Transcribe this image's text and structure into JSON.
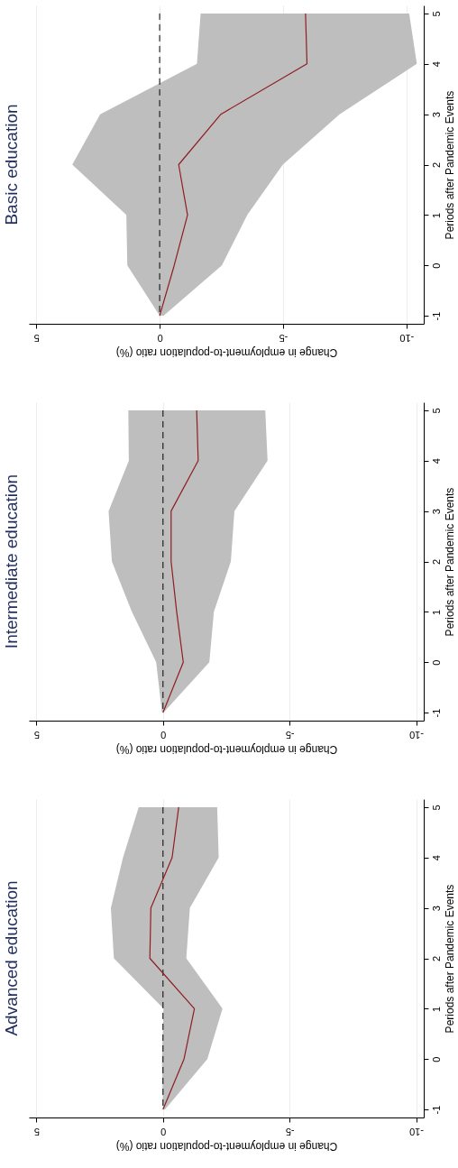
{
  "chart_data": [
    {
      "type": "line",
      "orientation": "horizontal",
      "title": "Advanced education",
      "xlabel": "Change in employment-to-population ratio (%)",
      "ylabel": "Periods after Pandemic Events",
      "categories": [
        "5",
        "4",
        "3",
        "2",
        "1",
        "0",
        "-1"
      ],
      "xlim": [
        5.3,
        -10.3
      ],
      "xticks": [
        -10,
        -5,
        0,
        5
      ],
      "grid": "x",
      "series": [
        {
          "color": "#8f1d21",
          "values": [
            -0.62,
            -0.36,
            0.48,
            0.52,
            -1.24,
            -0.83,
            0
          ],
          "lower": [
            -2.14,
            -2.2,
            -1.06,
            -0.92,
            -2.35,
            -1.75,
            -0.08
          ],
          "upper": [
            0.96,
            1.58,
            2.06,
            1.94,
            -0.02,
            0.04,
            0
          ]
        }
      ],
      "ref_lines": [
        {
          "axis": "x",
          "value": 0,
          "color": "#000000",
          "line_style": "dashed"
        }
      ]
    },
    {
      "type": "line",
      "orientation": "horizontal",
      "title": "Intermediate education",
      "xlabel": "Change in employment-to-population ratio (%)",
      "ylabel": "Periods after Pandemic Events",
      "categories": [
        "5",
        "4",
        "3",
        "2",
        "1",
        "0",
        "-1"
      ],
      "xlim": [
        5.3,
        -10.3
      ],
      "xticks": [
        -10,
        -5,
        0,
        5
      ],
      "grid": "x",
      "series": [
        {
          "color": "#8f1d21",
          "values": [
            -1.33,
            -1.39,
            -0.32,
            -0.32,
            -0.54,
            -0.8,
            0
          ],
          "lower": [
            -4.04,
            -4.13,
            -2.82,
            -2.68,
            -2.01,
            -1.83,
            -0.02
          ],
          "upper": [
            1.37,
            1.35,
            2.15,
            2.02,
            1.23,
            0.27,
            0.04
          ]
        }
      ],
      "ref_lines": [
        {
          "axis": "x",
          "value": 0,
          "color": "#000000",
          "line_style": "dashed"
        }
      ]
    },
    {
      "type": "line",
      "orientation": "horizontal",
      "title": "Basic education",
      "xlabel": "Change in employment-to-population ratio (%)",
      "ylabel": "Periods after Pandemic Events",
      "categories": [
        "5",
        "4",
        "3",
        "2",
        "1",
        "0",
        "-1"
      ],
      "xlim": [
        5.3,
        -10.7
      ],
      "xticks": [
        -10,
        -5,
        0,
        5
      ],
      "grid": "x",
      "series": [
        {
          "color": "#8f1d21",
          "values": [
            -5.91,
            -5.97,
            -2.48,
            -0.77,
            -1.13,
            -0.59,
            0
          ],
          "lower": [
            -10.11,
            -10.42,
            -7.29,
            -4.99,
            -3.55,
            -2.52,
            -0.16
          ],
          "upper": [
            -1.66,
            -1.51,
            2.41,
            3.54,
            1.35,
            1.31,
            0
          ]
        }
      ],
      "ref_lines": [
        {
          "axis": "x",
          "value": 0,
          "color": "#000000",
          "line_style": "dashed"
        }
      ]
    }
  ]
}
